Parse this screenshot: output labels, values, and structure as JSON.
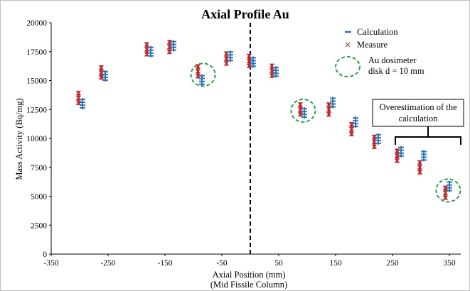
{
  "chart_data": {
    "type": "scatter",
    "title": "Axial Profile Au",
    "xlabel": "Axial Position (mm)",
    "xlabel_sub": "(Mid Fissile Column)",
    "ylabel": "Mass Activity (Bq/mg)",
    "xlim": [
      -350,
      370
    ],
    "ylim": [
      0,
      20000
    ],
    "xticks": [
      -350,
      -250,
      -150,
      -50,
      50,
      150,
      250,
      350
    ],
    "yticks": [
      0,
      2500,
      5000,
      7500,
      10000,
      12500,
      15000,
      17500,
      20000
    ],
    "grid": false,
    "legend_position": "top-right",
    "center_line_x": 0,
    "series": [
      {
        "name": "Calculation",
        "marker": "dash",
        "color": "#2e75b6",
        "points": [
          {
            "x": -295,
            "y": 13000
          },
          {
            "x": -255,
            "y": 15400
          },
          {
            "x": -175,
            "y": 17500
          },
          {
            "x": -135,
            "y": 18000
          },
          {
            "x": -85,
            "y": 15050
          },
          {
            "x": -35,
            "y": 17100
          },
          {
            "x": 5,
            "y": 16600
          },
          {
            "x": 45,
            "y": 15750
          },
          {
            "x": 95,
            "y": 12200
          },
          {
            "x": 145,
            "y": 13100
          },
          {
            "x": 185,
            "y": 11400
          },
          {
            "x": 225,
            "y": 9950
          },
          {
            "x": 265,
            "y": 8850
          },
          {
            "x": 305,
            "y": 8500
          },
          {
            "x": 350,
            "y": 5850
          }
        ]
      },
      {
        "name": "Measure",
        "marker": "x",
        "color": "#c0282b",
        "points": [
          {
            "x": -302,
            "y": 13500
          },
          {
            "x": -262,
            "y": 15700
          },
          {
            "x": -182,
            "y": 17700
          },
          {
            "x": -142,
            "y": 17900
          },
          {
            "x": -92,
            "y": 15800
          },
          {
            "x": -42,
            "y": 16900
          },
          {
            "x": -2,
            "y": 16700
          },
          {
            "x": 38,
            "y": 15850
          },
          {
            "x": 88,
            "y": 12500
          },
          {
            "x": 138,
            "y": 12500
          },
          {
            "x": 178,
            "y": 10800
          },
          {
            "x": 218,
            "y": 9700
          },
          {
            "x": 258,
            "y": 8500
          },
          {
            "x": 298,
            "y": 7500
          },
          {
            "x": 343,
            "y": 5300
          }
        ]
      }
    ],
    "legend": {
      "calculation_label": "Calculation",
      "measure_label": "Measure",
      "dosimeter_label_line1": "Au dosimeter",
      "dosimeter_label_line2": "disk d = 10 mm"
    },
    "dosimeter_circles": [
      {
        "x": -83,
        "y": 15500
      },
      {
        "x": 93,
        "y": 12400
      },
      {
        "x": 348,
        "y": 5500
      }
    ],
    "annotation": {
      "line1": "Overestimation of the",
      "line2": "calculation",
      "x_from": 255,
      "x_to": 370
    }
  },
  "colors": {
    "calculation": "#2e75b6",
    "measure": "#c0282b",
    "circle": "#2e9e4f"
  }
}
